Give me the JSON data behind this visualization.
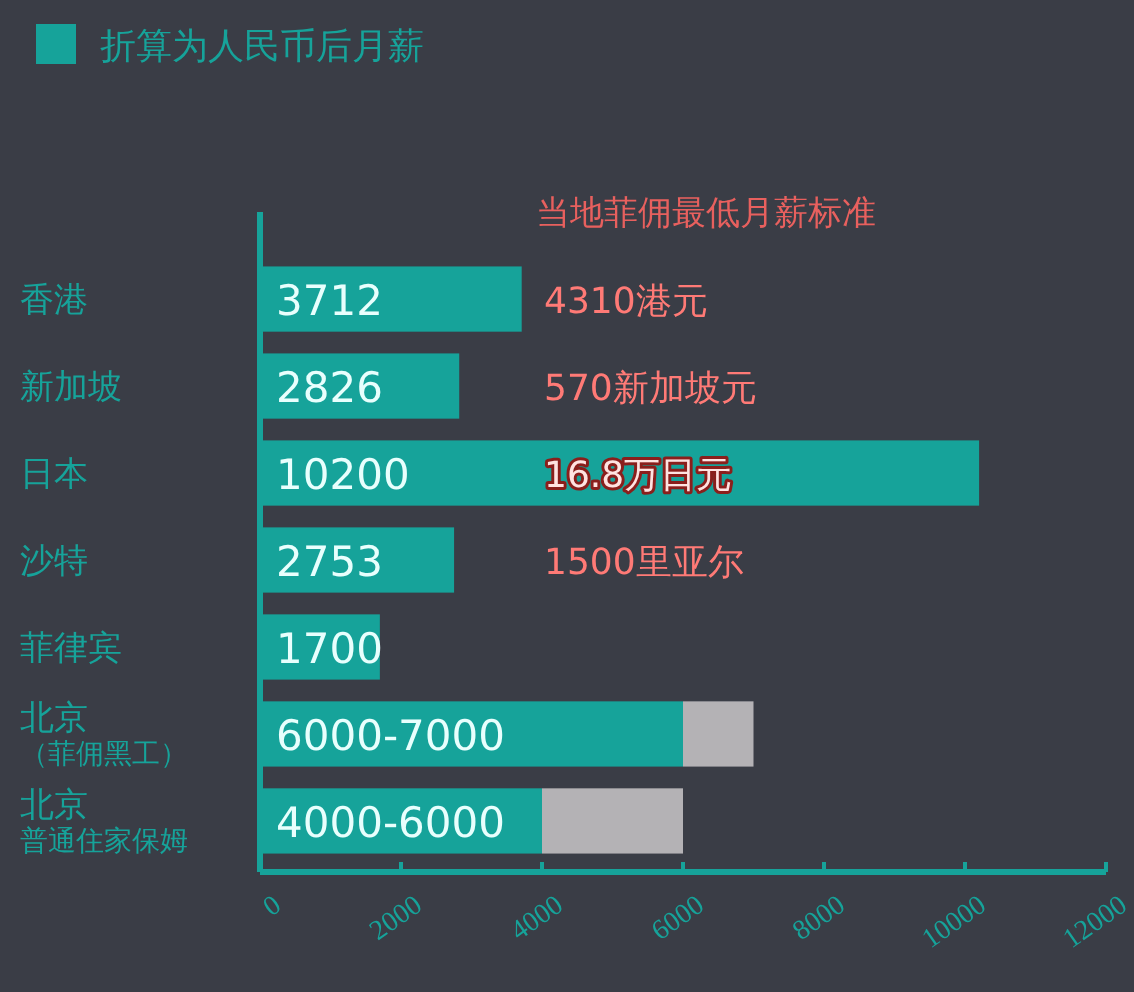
{
  "chart_data": {
    "type": "bar",
    "orientation": "horizontal",
    "stacked": true,
    "categories": [
      "香港",
      "新加坡",
      "日本",
      "沙特",
      "菲律宾",
      "北京（菲佣黑工）",
      "北京普通住家保姆"
    ],
    "series": [
      {
        "name": "折算为人民币后月薪",
        "color": "#16a39a",
        "values": [
          3712,
          2826,
          10200,
          2753,
          1700,
          6000,
          4000
        ],
        "value_labels": [
          "3712",
          "2826",
          "10200",
          "2753",
          "1700",
          "6000-7000",
          "4000-6000"
        ]
      },
      {
        "color": "#b4b2b5",
        "values": [
          null,
          null,
          null,
          null,
          null,
          1000,
          2000
        ]
      }
    ],
    "xlim": [
      0,
      12000
    ],
    "xticks": [
      0,
      2000,
      4000,
      6000,
      8000,
      10000,
      12000
    ],
    "legend": "top left",
    "grid": false,
    "annotations": [
      "当地菲佣最低月薪标准",
      "4310港元",
      "570新加坡元",
      "16.8万日元",
      "1500里亚尔"
    ]
  }
}
